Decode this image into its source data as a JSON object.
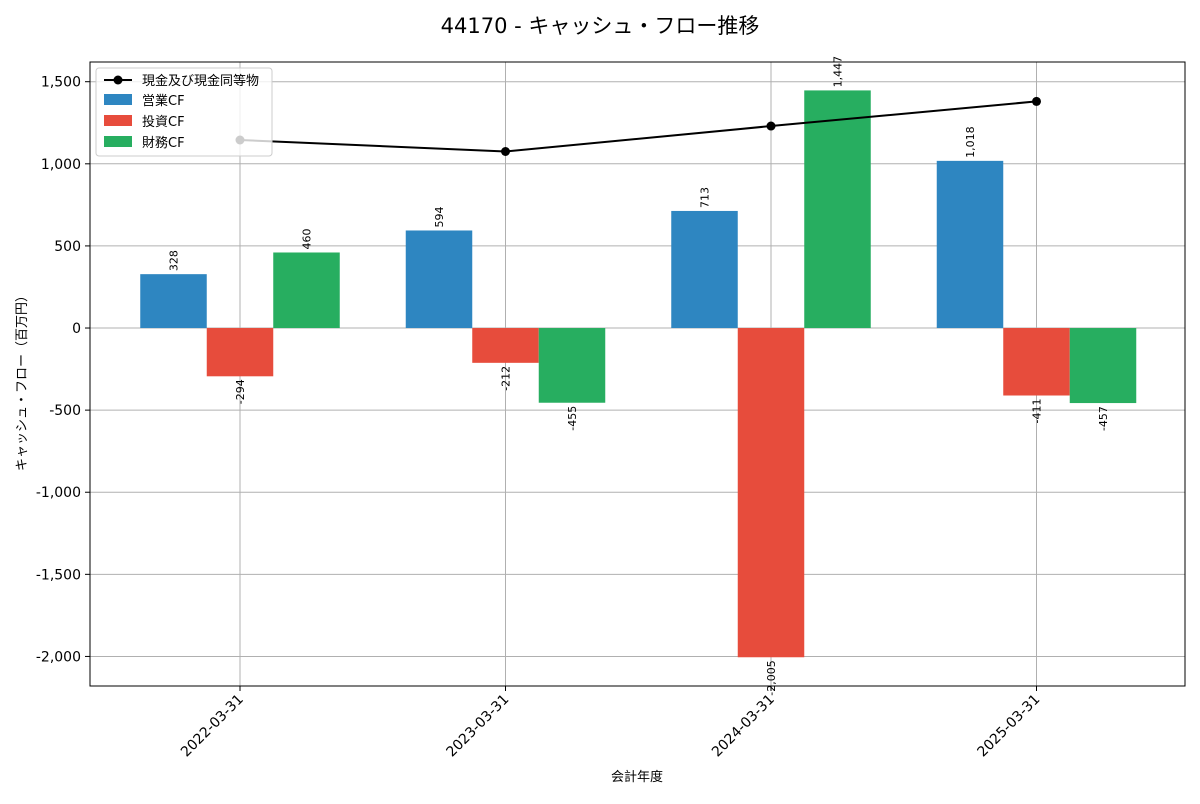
{
  "chart_data": {
    "type": "bar",
    "title": "44170 - キャッシュ・フロー推移",
    "xlabel": "会計年度",
    "ylabel": "キャッシュ・フロー（百万円）",
    "categories": [
      "2022-03-31",
      "2023-03-31",
      "2024-03-31",
      "2025-03-31"
    ],
    "ylim": [
      -2180,
      1620
    ],
    "yticks": [
      -2000,
      -1500,
      -1000,
      -500,
      0,
      500,
      1000,
      1500
    ],
    "ytick_labels": [
      "-2,000",
      "-1,500",
      "-1,000",
      "-500",
      "0",
      "500",
      "1,000",
      "1,500"
    ],
    "grid": true,
    "legend_position": "top-left",
    "series": [
      {
        "name": "営業CF",
        "color": "#2e86c1",
        "values": [
          328,
          594,
          713,
          1018
        ],
        "labels": [
          "328",
          "594",
          "713",
          "1,018"
        ]
      },
      {
        "name": "投資CF",
        "color": "#e74c3c",
        "values": [
          -294,
          -212,
          -2005,
          -411
        ],
        "labels": [
          "-294",
          "-212",
          "-2,005",
          "-411"
        ]
      },
      {
        "name": "財務CF",
        "color": "#27ae60",
        "values": [
          460,
          -455,
          1447,
          -457
        ],
        "labels": [
          "460",
          "-455",
          "1,447",
          "-457"
        ]
      }
    ],
    "line": {
      "name": "現金及び現金同等物",
      "color": "#000000",
      "values": [
        1145,
        1075,
        1230,
        1380
      ]
    }
  }
}
